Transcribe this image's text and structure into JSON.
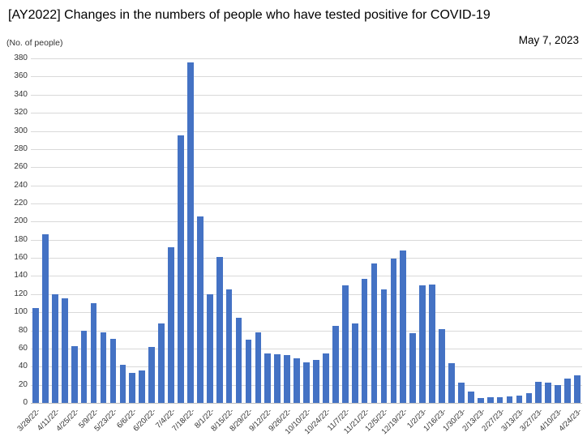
{
  "chart_data": {
    "type": "bar",
    "title": "[AY2022] Changes in the numbers of people who have tested positive for COVID-19",
    "date_annotation": "May 7, 2023",
    "units_label": "(No. of people)",
    "ylim": [
      0,
      380
    ],
    "y_tick_step": 20,
    "grid": "horizontal",
    "legend": "none",
    "bar_color": "#4472C4",
    "gridline_color": "#D9D9D9",
    "x_tick_labels": [
      "3/28/22-",
      "4/11/22-",
      "4/25/22-",
      "5/9/22-",
      "5/23/22-",
      "6/6/22-",
      "6/20/22-",
      "7/4/22-",
      "7/18/22-",
      "8/1/22-",
      "8/15/22-",
      "8/29/22-",
      "9/12/22-",
      "9/26/22-",
      "10/10/22-",
      "10/24/22-",
      "11/7/22-",
      "11/21/22-",
      "12/5/22-",
      "12/19/22-",
      "1/2/23-",
      "1/16/23-",
      "1/30/23-",
      "2/13/23-",
      "2/27/23-",
      "3/13/23-",
      "3/27/23-",
      "4/10/23-",
      "4/24/23-"
    ],
    "x_label_every_n_bars": 2,
    "values": [
      105,
      186,
      120,
      115,
      63,
      80,
      110,
      78,
      71,
      42,
      33,
      36,
      62,
      88,
      172,
      295,
      376,
      206,
      120,
      161,
      125,
      94,
      70,
      78,
      55,
      54,
      53,
      49,
      45,
      47,
      55,
      85,
      130,
      88,
      137,
      154,
      125,
      159,
      168,
      77,
      130,
      131,
      81,
      44,
      22,
      13,
      5,
      6,
      6,
      7,
      8,
      11,
      23,
      22,
      20,
      27,
      30
    ]
  }
}
